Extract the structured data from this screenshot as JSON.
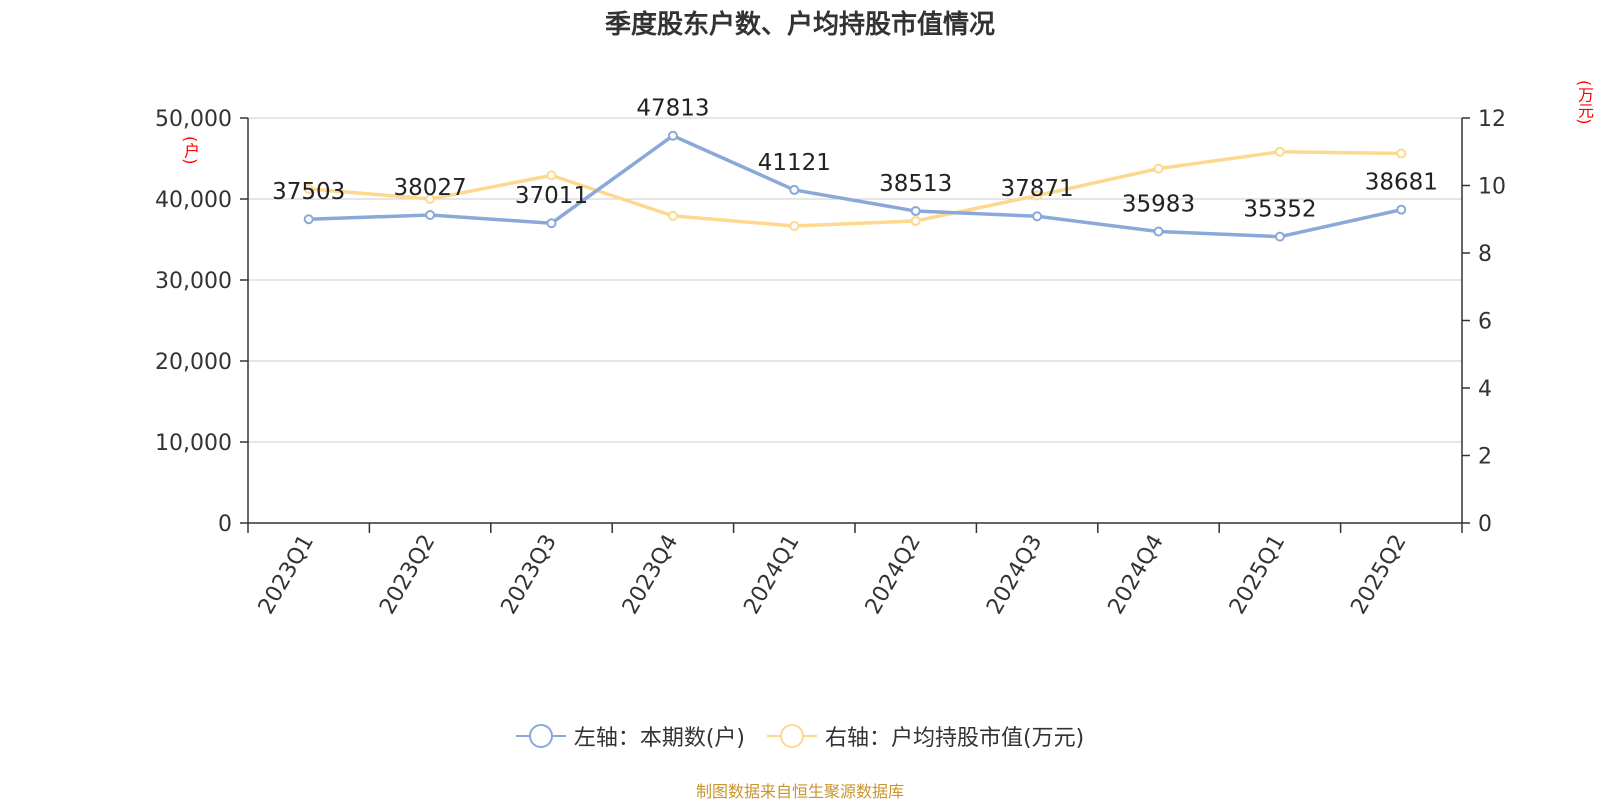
{
  "title": "季度股东户数、户均持股市值情况",
  "source": "制图数据来自恒生聚源数据库",
  "chart_data": {
    "type": "line",
    "categories": [
      "2023Q1",
      "2023Q2",
      "2023Q3",
      "2023Q4",
      "2024Q1",
      "2024Q2",
      "2024Q3",
      "2024Q4",
      "2025Q1",
      "2025Q2"
    ],
    "left_axis": {
      "unit": "(户)",
      "range": [
        0,
        50000
      ],
      "ticks": [
        "0",
        "10,000",
        "20,000",
        "30,000",
        "40,000",
        "50,000"
      ]
    },
    "right_axis": {
      "unit": "(万元)",
      "range": [
        0,
        12
      ],
      "ticks": [
        "0",
        "2",
        "4",
        "6",
        "8",
        "10",
        "12"
      ]
    },
    "series": [
      {
        "name": "左轴：本期数(户)",
        "axis": "left",
        "color": "#8aa8d8",
        "values": [
          37503,
          38027,
          37011,
          47813,
          41121,
          38513,
          37871,
          35983,
          35352,
          38681
        ],
        "labels": [
          "37503",
          "38027",
          "37011",
          "47813",
          "41121",
          "38513",
          "37871",
          "35983",
          "35352",
          "38681"
        ]
      },
      {
        "name": "右轴：户均持股市值(万元)",
        "axis": "right",
        "color": "#fcd98f",
        "values": [
          9.9,
          9.6,
          10.3,
          9.1,
          8.8,
          8.95,
          9.7,
          10.5,
          11.0,
          10.95
        ]
      }
    ],
    "grid": true,
    "legend_position": "bottom"
  }
}
